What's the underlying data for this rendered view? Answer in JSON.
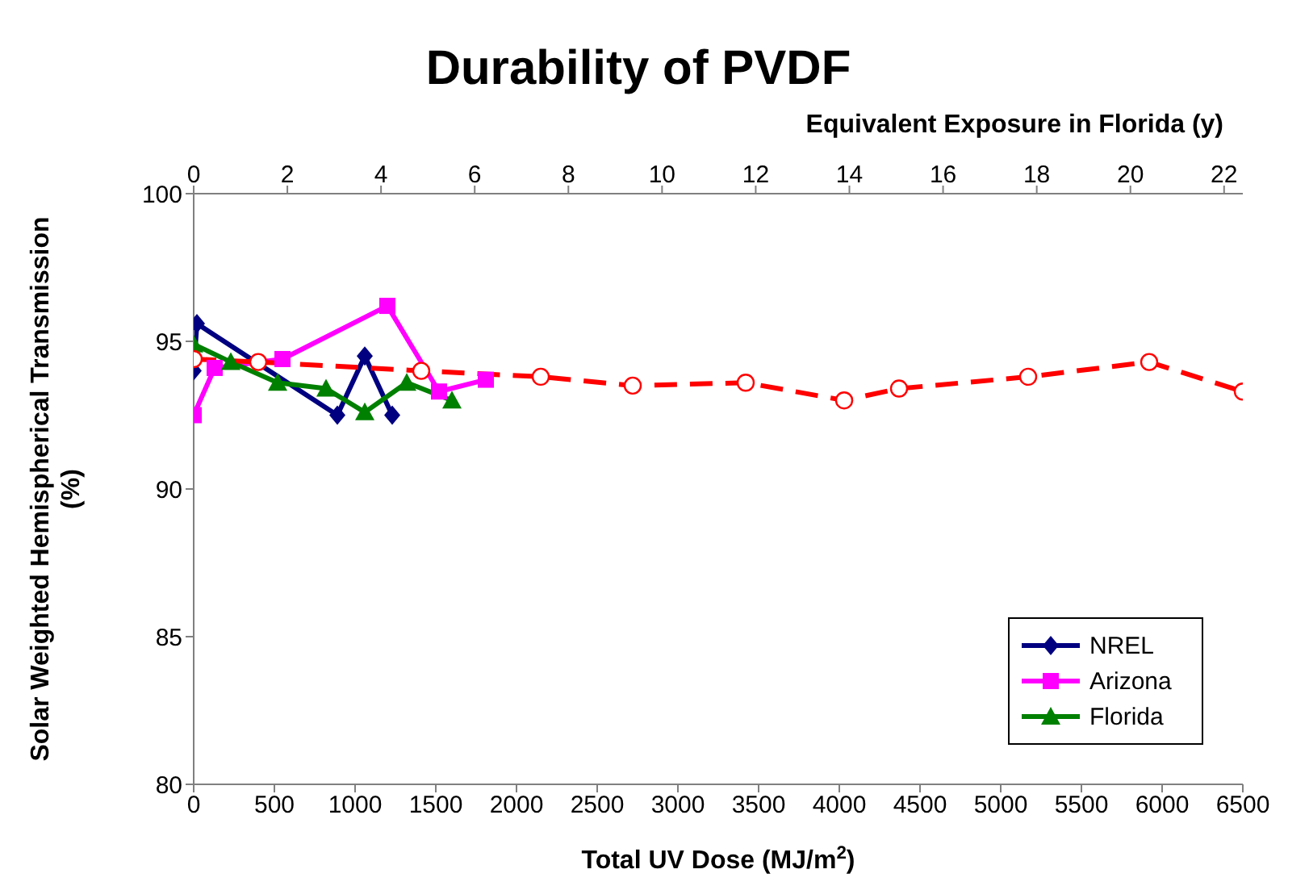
{
  "chart_data": {
    "type": "line",
    "title": "Durability of PVDF",
    "xlabel": "Total UV Dose (MJ/m$^{2}$)",
    "ylabel": "Solar Weighted Hemispherical Transmission (%)",
    "x2label": "Equivalent Exposure in Florida (y)",
    "xlim": [
      0,
      6500
    ],
    "xticks": [
      0,
      500,
      1000,
      1500,
      2000,
      2500,
      3000,
      3500,
      4000,
      4500,
      5000,
      5500,
      6000,
      6500
    ],
    "x2lim": [
      0,
      22.4
    ],
    "x2ticks": [
      0,
      2,
      4,
      6,
      8,
      10,
      12,
      14,
      16,
      18,
      20,
      22
    ],
    "ylim": [
      80,
      100
    ],
    "yticks": [
      80,
      85,
      90,
      95,
      100
    ],
    "legend": "bottom right",
    "series": [
      {
        "name": "NREL",
        "color": "#000080",
        "marker": "diamond",
        "line_style": "solid",
        "x": [
          0,
          20,
          890,
          1060,
          1230
        ],
        "values": [
          94.0,
          95.6,
          92.5,
          94.5,
          92.5
        ]
      },
      {
        "name": "Arizona",
        "color": "#ff00ff",
        "marker": "square",
        "line_style": "solid",
        "x": [
          0,
          130,
          550,
          1200,
          1520,
          1810
        ],
        "values": [
          92.5,
          94.1,
          94.4,
          96.2,
          93.3,
          93.7
        ]
      },
      {
        "name": "Florida",
        "color": "#008000",
        "marker": "triangle",
        "line_style": "solid",
        "x": [
          0,
          230,
          520,
          820,
          1060,
          1320,
          1600
        ],
        "values": [
          94.9,
          94.3,
          93.6,
          93.4,
          92.6,
          93.6,
          93.0
        ]
      },
      {
        "color": "#ff0000",
        "marker": "circle",
        "line_style": "dashed",
        "x": [
          0,
          400,
          1410,
          2150,
          2720,
          3420,
          4030,
          4370,
          5170,
          5920,
          6500
        ],
        "values": [
          94.4,
          94.3,
          94.0,
          93.8,
          93.5,
          93.6,
          93.0,
          93.4,
          93.8,
          94.3,
          93.3
        ]
      }
    ]
  }
}
